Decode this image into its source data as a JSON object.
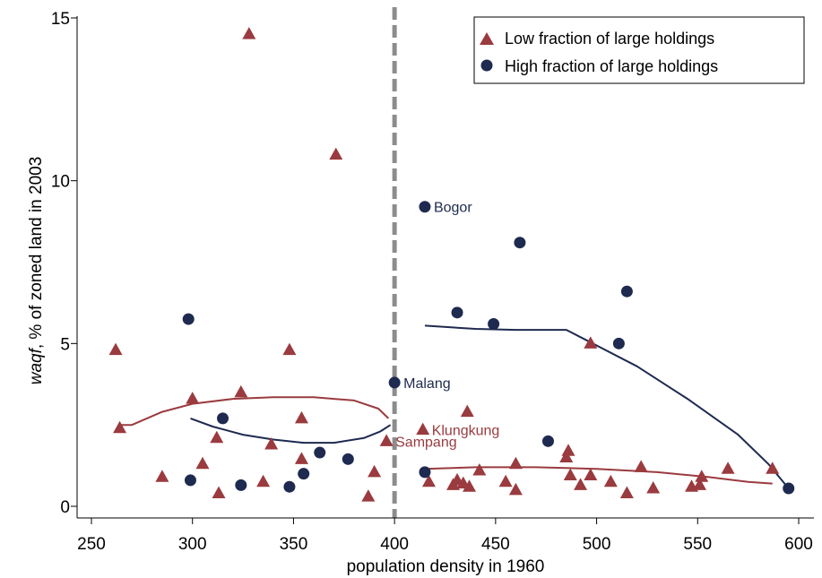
{
  "chart_data": {
    "type": "scatter",
    "xlabel": "population density in 1960",
    "ylabel_italic": "waqf",
    "ylabel_rest": ", % of zoned land in 2003",
    "xlim": [
      250,
      600
    ],
    "ylim": [
      0,
      15.5
    ],
    "x_ticks": [
      250,
      300,
      350,
      400,
      450,
      500,
      550,
      600
    ],
    "y_ticks": [
      0,
      5,
      10,
      15
    ],
    "reference_line_x": 400,
    "legend_position": "top-right",
    "colors": {
      "low": "#9a3b3f",
      "high": "#1e2a4f",
      "refline": "#8c8c8c"
    },
    "series": [
      {
        "name": "Low fraction of large holdings",
        "marker": "triangle",
        "points": [
          [
            262,
            4.8
          ],
          [
            264,
            2.4
          ],
          [
            285,
            0.9
          ],
          [
            300,
            3.3
          ],
          [
            305,
            1.3
          ],
          [
            312,
            2.1
          ],
          [
            313,
            0.4
          ],
          [
            324,
            3.5
          ],
          [
            328,
            14.5
          ],
          [
            335,
            0.75
          ],
          [
            339,
            1.9
          ],
          [
            348,
            4.8
          ],
          [
            354,
            2.7
          ],
          [
            354,
            1.45
          ],
          [
            371,
            10.8
          ],
          [
            387,
            0.3
          ],
          [
            390,
            1.05
          ],
          [
            396,
            2.0
          ],
          [
            414,
            2.35
          ],
          [
            417,
            0.75
          ],
          [
            429,
            0.65
          ],
          [
            431,
            0.8
          ],
          [
            434,
            0.7
          ],
          [
            436,
            2.9
          ],
          [
            437,
            0.6
          ],
          [
            442,
            1.1
          ],
          [
            455,
            0.75
          ],
          [
            460,
            1.3
          ],
          [
            460,
            0.5
          ],
          [
            485,
            1.5
          ],
          [
            486,
            1.7
          ],
          [
            487,
            0.95
          ],
          [
            492,
            0.65
          ],
          [
            497,
            5.0
          ],
          [
            497,
            0.95
          ],
          [
            507,
            0.75
          ],
          [
            515,
            0.4
          ],
          [
            522,
            1.2
          ],
          [
            528,
            0.55
          ],
          [
            547,
            0.6
          ],
          [
            551,
            0.65
          ],
          [
            552,
            0.9
          ],
          [
            565,
            1.15
          ],
          [
            587,
            1.15
          ]
        ],
        "fit": [
          [
            [
              264,
              2.5
            ],
            [
              270,
              2.5
            ],
            [
              285,
              2.9
            ],
            [
              300,
              3.15
            ],
            [
              320,
              3.3
            ],
            [
              340,
              3.35
            ],
            [
              360,
              3.35
            ],
            [
              380,
              3.25
            ],
            [
              392,
              3.0
            ],
            [
              397,
              2.7
            ]
          ],
          [
            [
              415,
              1.15
            ],
            [
              440,
              1.2
            ],
            [
              470,
              1.2
            ],
            [
              500,
              1.15
            ],
            [
              530,
              1.05
            ],
            [
              555,
              0.9
            ],
            [
              575,
              0.75
            ],
            [
              587,
              0.7
            ]
          ]
        ]
      },
      {
        "name": "High fraction of large holdings",
        "marker": "circle",
        "points": [
          [
            298,
            5.75
          ],
          [
            299,
            0.8
          ],
          [
            315,
            2.7
          ],
          [
            324,
            0.65
          ],
          [
            348,
            0.6
          ],
          [
            355,
            1.0
          ],
          [
            363,
            1.65
          ],
          [
            377,
            1.45
          ],
          [
            400,
            3.8
          ],
          [
            415,
            9.2
          ],
          [
            415,
            1.05
          ],
          [
            431,
            5.95
          ],
          [
            449,
            5.6
          ],
          [
            462,
            8.1
          ],
          [
            476,
            2.0
          ],
          [
            511,
            5.0
          ],
          [
            515,
            6.6
          ],
          [
            595,
            0.55
          ]
        ],
        "fit": [
          [
            [
              299,
              2.7
            ],
            [
              310,
              2.45
            ],
            [
              325,
              2.2
            ],
            [
              340,
              2.05
            ],
            [
              355,
              1.95
            ],
            [
              370,
              1.95
            ],
            [
              385,
              2.1
            ],
            [
              393,
              2.3
            ],
            [
              398,
              2.5
            ]
          ],
          [
            [
              415,
              5.55
            ],
            [
              440,
              5.45
            ],
            [
              460,
              5.42
            ],
            [
              485,
              5.42
            ],
            [
              495,
              5.1
            ],
            [
              520,
              4.3
            ],
            [
              545,
              3.3
            ],
            [
              570,
              2.2
            ],
            [
              585,
              1.3
            ],
            [
              595,
              0.55
            ]
          ]
        ]
      }
    ],
    "annotations": [
      {
        "text": "Bogor",
        "x": 415,
        "y": 9.2,
        "series": "high"
      },
      {
        "text": "Malang",
        "x": 400,
        "y": 3.8,
        "series": "high"
      },
      {
        "text": "Klungkung",
        "x": 414,
        "y": 2.35,
        "series": "low"
      },
      {
        "text": "Sampang",
        "x": 396,
        "y": 2.0,
        "series": "low"
      }
    ]
  }
}
